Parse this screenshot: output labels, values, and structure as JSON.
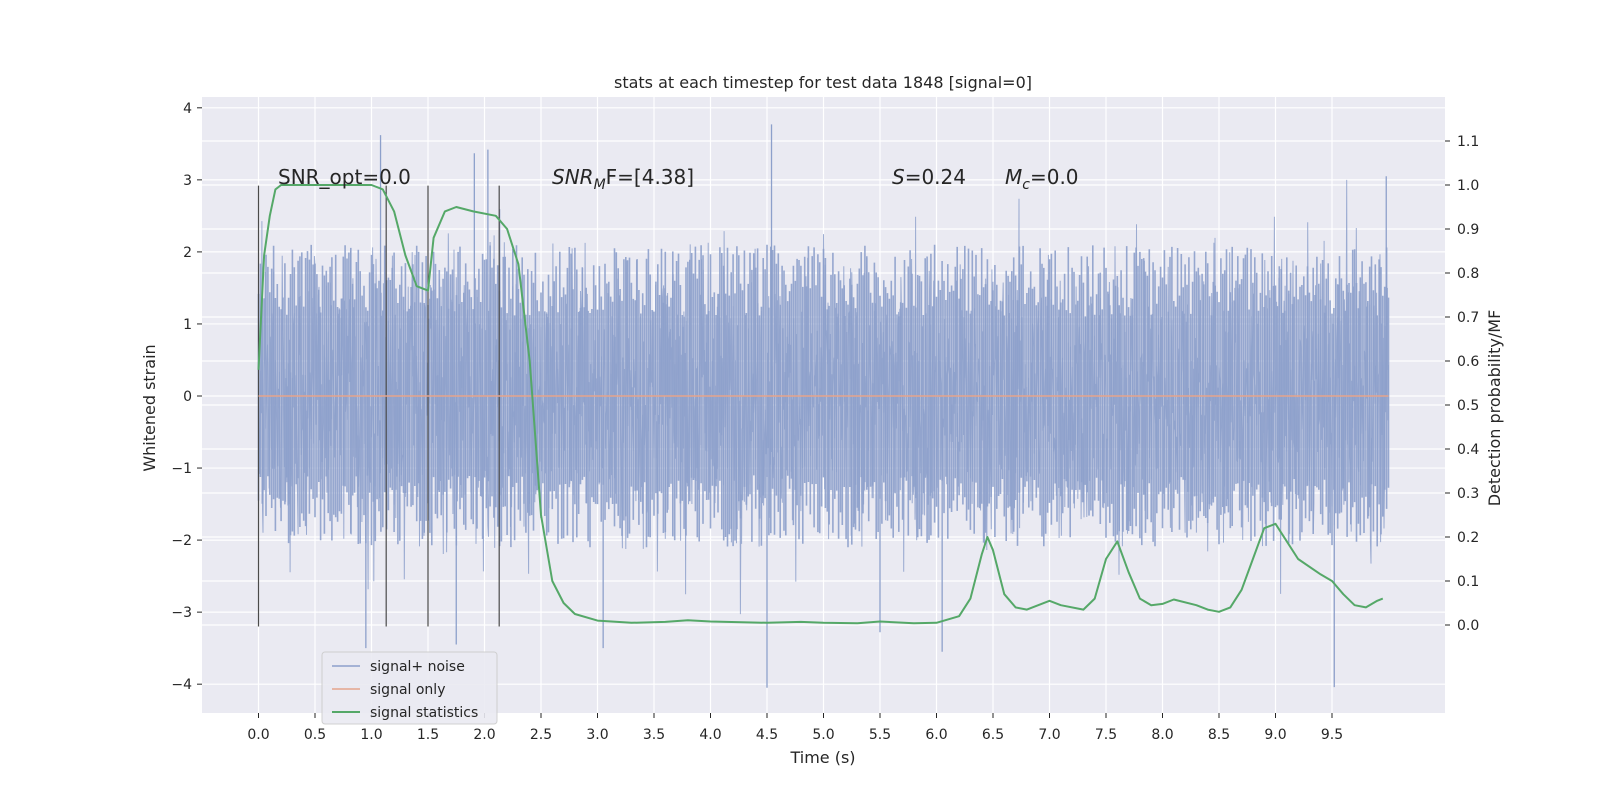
{
  "chart_data": {
    "type": "line",
    "title": "stats at each timestep for test data 1848 [signal=0]",
    "xlabel": "Time (s)",
    "ylabel": "Whitened strain",
    "y2label": "Detection probability/MF",
    "xlim": [
      -0.5,
      10.5
    ],
    "ylim": [
      -4.4,
      4.15
    ],
    "y2lim": [
      -0.2,
      1.2
    ],
    "xticks": [
      0.0,
      0.5,
      1.0,
      1.5,
      2.0,
      2.5,
      3.0,
      3.5,
      4.0,
      4.5,
      5.0,
      5.5,
      6.0,
      6.5,
      7.0,
      7.5,
      8.0,
      8.5,
      9.0,
      9.5
    ],
    "xtick_labels": [
      "0.0",
      "0.5",
      "1.0",
      "1.5",
      "2.0",
      "2.5",
      "3.0",
      "3.5",
      "4.0",
      "4.5",
      "5.0",
      "5.5",
      "6.0",
      "6.5",
      "7.0",
      "7.5",
      "8.0",
      "8.5",
      "9.0",
      "9.5"
    ],
    "yticks": [
      -4,
      -3,
      -2,
      -1,
      0,
      1,
      2,
      3,
      4
    ],
    "ytick_labels": [
      "−4",
      "−3",
      "−2",
      "−1",
      "0",
      "1",
      "2",
      "3",
      "4"
    ],
    "y2ticks": [
      0.0,
      0.1,
      0.2,
      0.3,
      0.4,
      0.5,
      0.6,
      0.7,
      0.8,
      0.9,
      1.0,
      1.1
    ],
    "y2tick_labels": [
      "0.0",
      "0.1",
      "0.2",
      "0.3",
      "0.4",
      "0.5",
      "0.6",
      "0.7",
      "0.8",
      "0.9",
      "1.0",
      "1.1"
    ],
    "grid": true,
    "legend_position": "bottom-left",
    "annotations": {
      "snr_opt": "SNR_opt=0.0",
      "snr_mf_base": "SNR",
      "snr_mf_sub": "M",
      "snr_mf_rest": "F=[4.38]",
      "s_var": "S",
      "s_rest": "=0.24",
      "mc_var": "M",
      "mc_sub": "c",
      "mc_rest": "=0.0"
    },
    "vertical_lines_x": [
      0.0,
      1.13,
      1.5,
      2.13
    ],
    "vertical_lines_range": [
      -3.2,
      2.92
    ],
    "series": [
      {
        "name": "signal+ noise",
        "color": "#8da0cb",
        "axis": "left",
        "style": "noise",
        "x_range": [
          0.0,
          10.0
        ],
        "typical_envelope": [
          -2.0,
          2.0
        ],
        "notable_spikes": [
          {
            "x": 1.08,
            "y": 3.62
          },
          {
            "x": 1.91,
            "y": 3.37
          },
          {
            "x": 2.03,
            "y": 3.42
          },
          {
            "x": 4.54,
            "y": 3.77
          },
          {
            "x": 9.98,
            "y": 3.05
          },
          {
            "x": 4.5,
            "y": -4.05
          },
          {
            "x": 9.52,
            "y": -4.04
          },
          {
            "x": 0.95,
            "y": -3.5
          },
          {
            "x": 1.75,
            "y": -3.45
          },
          {
            "x": 3.05,
            "y": -3.5
          },
          {
            "x": 6.05,
            "y": -3.55
          },
          {
            "x": 5.5,
            "y": -3.28
          }
        ]
      },
      {
        "name": "signal only",
        "color": "#e5a48c",
        "axis": "left",
        "x": [
          0.0,
          10.0
        ],
        "values": [
          0.0,
          0.0
        ]
      },
      {
        "name": "signal statistics",
        "color": "#55a868",
        "axis": "right",
        "x": [
          0.0,
          0.05,
          0.1,
          0.15,
          0.2,
          0.3,
          0.5,
          0.8,
          1.0,
          1.1,
          1.2,
          1.3,
          1.4,
          1.5,
          1.55,
          1.65,
          1.75,
          1.9,
          2.1,
          2.2,
          2.3,
          2.4,
          2.5,
          2.6,
          2.7,
          2.8,
          3.0,
          3.3,
          3.6,
          3.8,
          4.0,
          4.5,
          4.8,
          5.0,
          5.3,
          5.5,
          5.8,
          6.0,
          6.2,
          6.3,
          6.4,
          6.45,
          6.5,
          6.6,
          6.7,
          6.8,
          7.0,
          7.1,
          7.3,
          7.4,
          7.5,
          7.6,
          7.7,
          7.8,
          7.9,
          8.0,
          8.1,
          8.3,
          8.4,
          8.5,
          8.6,
          8.7,
          8.8,
          8.9,
          9.0,
          9.2,
          9.4,
          9.5,
          9.6,
          9.7,
          9.8,
          9.9,
          9.95
        ],
        "values": [
          0.58,
          0.84,
          0.93,
          0.99,
          1.0,
          1.0,
          1.0,
          1.0,
          1.0,
          0.99,
          0.94,
          0.84,
          0.77,
          0.76,
          0.88,
          0.94,
          0.95,
          0.94,
          0.93,
          0.9,
          0.82,
          0.6,
          0.25,
          0.1,
          0.05,
          0.025,
          0.01,
          0.005,
          0.007,
          0.011,
          0.008,
          0.005,
          0.007,
          0.005,
          0.004,
          0.008,
          0.004,
          0.005,
          0.02,
          0.06,
          0.16,
          0.2,
          0.17,
          0.07,
          0.04,
          0.035,
          0.055,
          0.045,
          0.035,
          0.06,
          0.15,
          0.19,
          0.12,
          0.06,
          0.045,
          0.048,
          0.058,
          0.045,
          0.035,
          0.03,
          0.04,
          0.08,
          0.15,
          0.22,
          0.23,
          0.15,
          0.115,
          0.1,
          0.07,
          0.045,
          0.04,
          0.055,
          0.06
        ]
      }
    ]
  }
}
